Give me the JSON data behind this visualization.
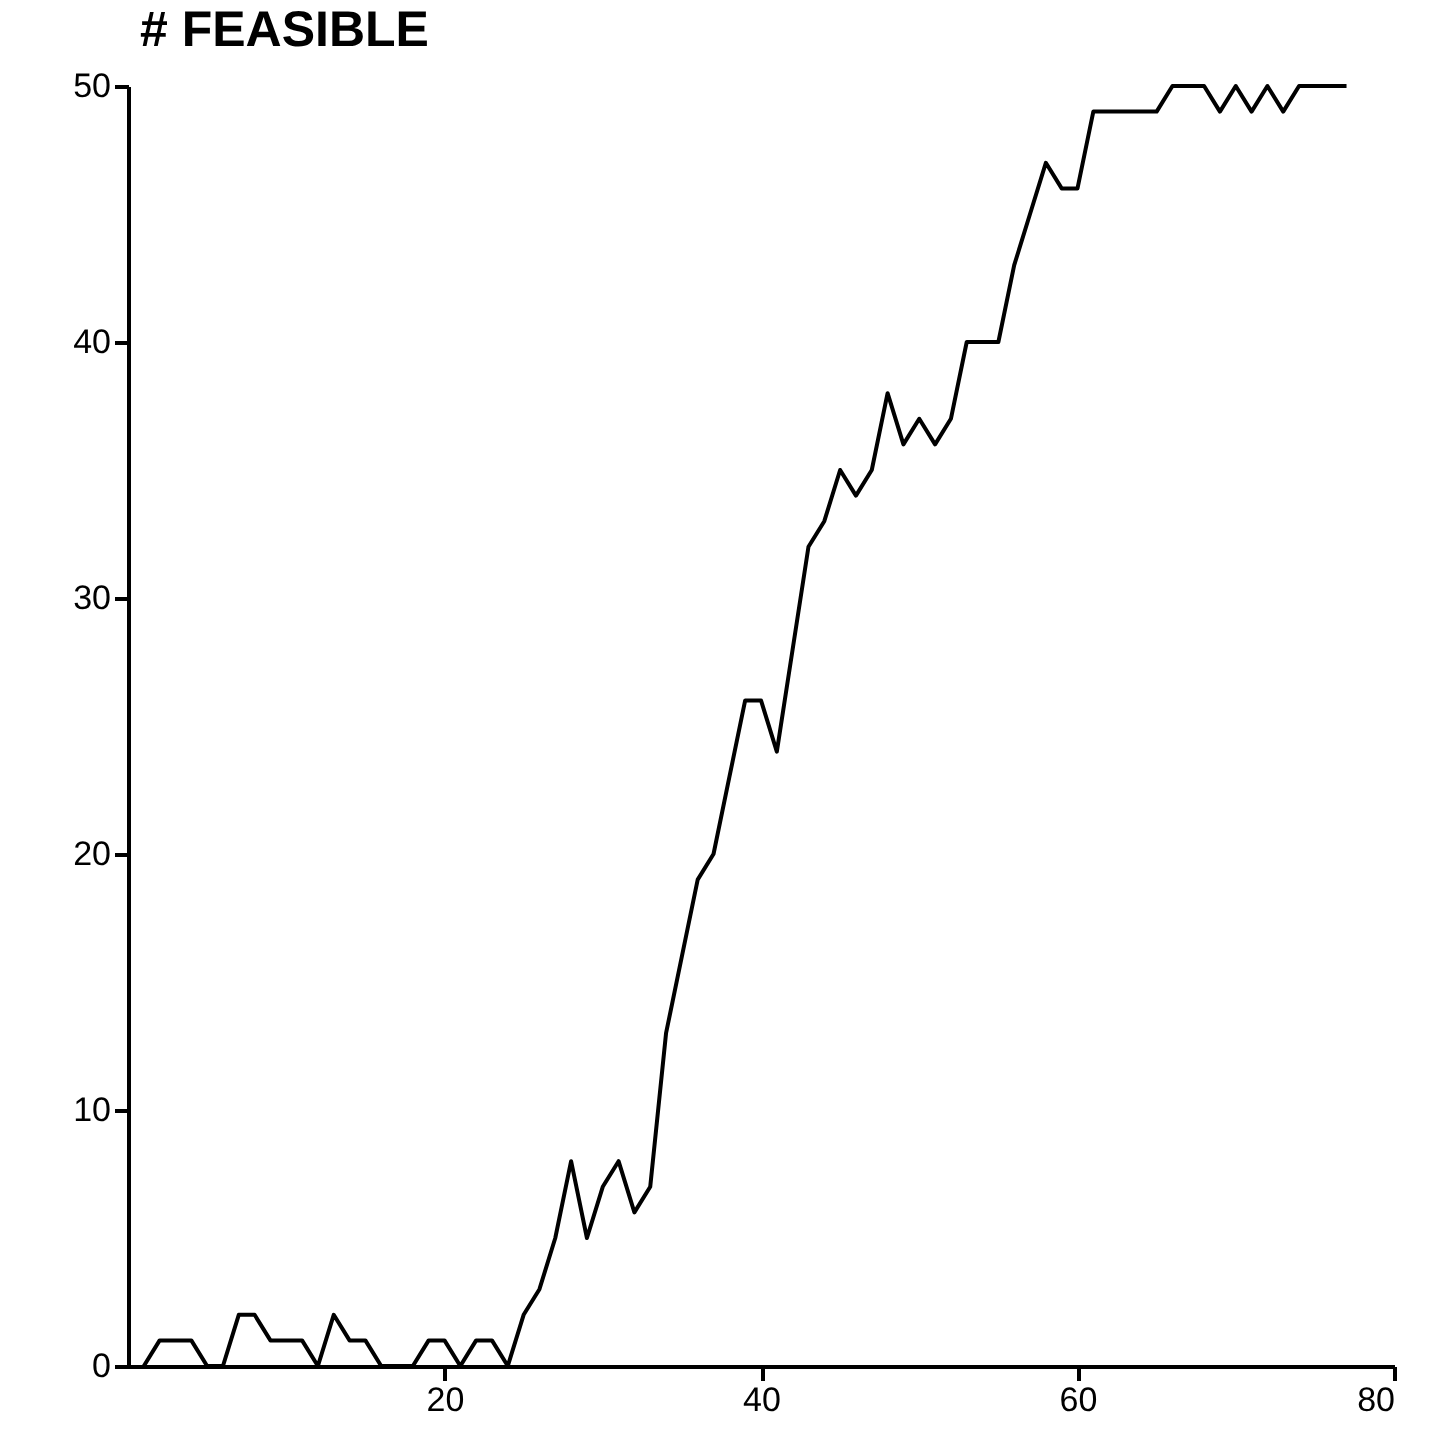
{
  "chart_data": {
    "type": "line",
    "title": "# FEASIBLE",
    "x": [
      1,
      2,
      3,
      4,
      5,
      6,
      7,
      8,
      9,
      10,
      11,
      12,
      13,
      14,
      15,
      16,
      17,
      18,
      19,
      20,
      21,
      22,
      23,
      24,
      25,
      26,
      27,
      28,
      29,
      30,
      31,
      32,
      33,
      34,
      35,
      36,
      37,
      38,
      39,
      40,
      41,
      42,
      43,
      44,
      45,
      46,
      47,
      48,
      49,
      50,
      51,
      52,
      53,
      54,
      55,
      56,
      57,
      58,
      59,
      60,
      61,
      62,
      63,
      64,
      65,
      66,
      67,
      68,
      69,
      70,
      71,
      72,
      73,
      74,
      75,
      76,
      77
    ],
    "series": [
      {
        "color": "#000000",
        "values": [
          0,
          1,
          1,
          1,
          0,
          0,
          2,
          2,
          1,
          1,
          1,
          0,
          2,
          1,
          1,
          0,
          0,
          0,
          1,
          1,
          0,
          1,
          1,
          0,
          2,
          3,
          5,
          8,
          5,
          7,
          8,
          6,
          7,
          13,
          16,
          19,
          20,
          23,
          26,
          26,
          24,
          28,
          32,
          33,
          35,
          34,
          35,
          38,
          36,
          37,
          36,
          37,
          40,
          40,
          40,
          43,
          45,
          47,
          46,
          46,
          49,
          49,
          49,
          49,
          49,
          50,
          50,
          50,
          49,
          50,
          49,
          50,
          49,
          50,
          50,
          50,
          50
        ]
      }
    ],
    "xlim": [
      0,
      80
    ],
    "xticks": [
      20,
      40,
      60,
      80
    ],
    "ylim": [
      0,
      50
    ],
    "yticks": [
      0,
      10,
      20,
      30,
      40,
      50
    ],
    "grid": false,
    "marker": "none",
    "line_style": "solid"
  }
}
